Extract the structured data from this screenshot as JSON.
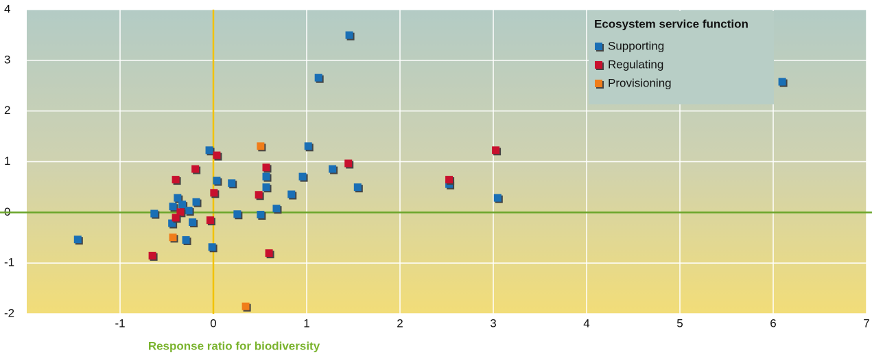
{
  "chart_data": {
    "type": "scatter",
    "xlabel": "Response ratio for biodiversity",
    "legend_title": "Ecosystem service function",
    "legend": "top-right",
    "grid": true,
    "xlim": [
      -2,
      7
    ],
    "xticks": [
      -1,
      0,
      1,
      2,
      3,
      4,
      5,
      6,
      7
    ],
    "ylim": [
      -2,
      4
    ],
    "yticks": [
      -2,
      -1,
      0,
      1,
      2,
      3,
      4
    ],
    "series": [
      {
        "name": "Supporting",
        "color": "#1a6fb5",
        "x": [
          1.46,
          1.13,
          6.1,
          -0.04,
          1.02,
          1.28,
          0.96,
          0.57,
          0.04,
          0.2,
          1.55,
          0.57,
          2.53,
          0.84,
          3.05,
          -0.38,
          -0.18,
          -0.33,
          -0.43,
          0.68,
          -0.26,
          -0.63,
          0.26,
          0.51,
          -0.44,
          -0.22,
          -0.29,
          -1.45,
          -0.01
        ],
        "values": [
          3.49,
          2.65,
          2.57,
          1.22,
          1.3,
          0.85,
          0.7,
          0.7,
          0.62,
          0.57,
          0.49,
          0.49,
          0.55,
          0.35,
          0.28,
          0.28,
          0.2,
          0.15,
          0.11,
          0.07,
          0.03,
          -0.03,
          -0.04,
          -0.05,
          -0.22,
          -0.2,
          -0.55,
          -0.54,
          -0.69
        ]
      },
      {
        "name": "Regulating",
        "color": "#c8102e",
        "x": [
          0.04,
          3.03,
          1.45,
          -0.19,
          0.57,
          -0.4,
          2.53,
          0.01,
          0.49,
          -0.35,
          -0.4,
          -0.03,
          0.6,
          -0.65
        ],
        "values": [
          1.12,
          1.22,
          0.96,
          0.85,
          0.88,
          0.64,
          0.64,
          0.38,
          0.34,
          0.0,
          -0.11,
          -0.16,
          -0.81,
          -0.86
        ]
      },
      {
        "name": "Provisioning",
        "color": "#f07d1a",
        "x": [
          0.51,
          -0.43,
          0.35
        ],
        "values": [
          1.3,
          -0.5,
          -1.86
        ]
      }
    ]
  }
}
